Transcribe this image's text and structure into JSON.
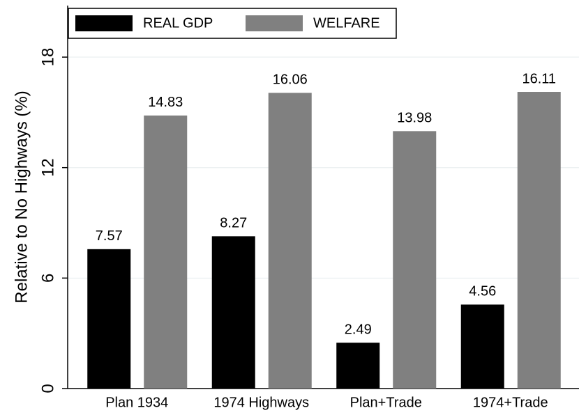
{
  "chart_data": {
    "type": "bar",
    "ylabel": "Relative to No Highways (%)",
    "categories": [
      "Plan 1934",
      "1974 Highways",
      "Plan+Trade",
      "1974+Trade"
    ],
    "series": [
      {
        "name": "REAL GDP",
        "color": "#000000",
        "values": [
          7.57,
          8.27,
          2.49,
          4.56
        ]
      },
      {
        "name": "WELFARE",
        "color": "#808080",
        "values": [
          14.83,
          16.06,
          13.98,
          16.11
        ]
      }
    ],
    "ylim": [
      0,
      20.8
    ],
    "yticks": [
      0,
      6,
      12,
      18
    ],
    "grid": true,
    "legend": "top-left"
  }
}
